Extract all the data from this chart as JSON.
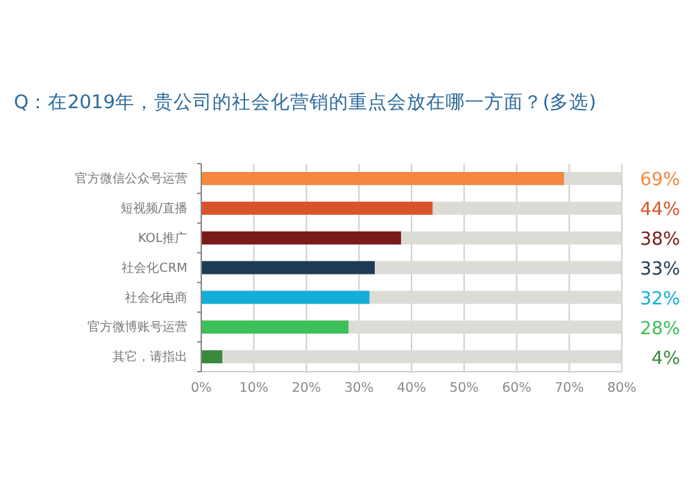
{
  "chart_data": {
    "type": "bar",
    "orientation": "horizontal",
    "title": "Q：在2019年，贵公司的社会化营销的重点会放在哪一方面？(多选)",
    "categories": [
      "官方微信公众号运营",
      "短视频/直播",
      "KOL推广",
      "社会化CRM",
      "社会化电商",
      "官方微博账号运营",
      "其它，请指出"
    ],
    "values": [
      69,
      44,
      38,
      33,
      32,
      28,
      4
    ],
    "colors": [
      "#f5873f",
      "#d9532a",
      "#7a1a1a",
      "#1f3a55",
      "#13afd8",
      "#3dbf5a",
      "#3a8a3e"
    ],
    "value_labels": [
      "69%",
      "44%",
      "38%",
      "33%",
      "32%",
      "28%",
      "4%"
    ],
    "xlim": [
      0,
      80
    ],
    "xticks": [
      {
        "value": 0,
        "label": "0%"
      },
      {
        "value": 10,
        "label": "10%"
      },
      {
        "value": 20,
        "label": "20%"
      },
      {
        "value": 30,
        "label": "30%"
      },
      {
        "value": 40,
        "label": "40%"
      },
      {
        "value": 50,
        "label": "50%"
      },
      {
        "value": 60,
        "label": "60%"
      },
      {
        "value": 70,
        "label": "70%"
      },
      {
        "value": 80,
        "label": "80%"
      }
    ],
    "grid": "x"
  }
}
